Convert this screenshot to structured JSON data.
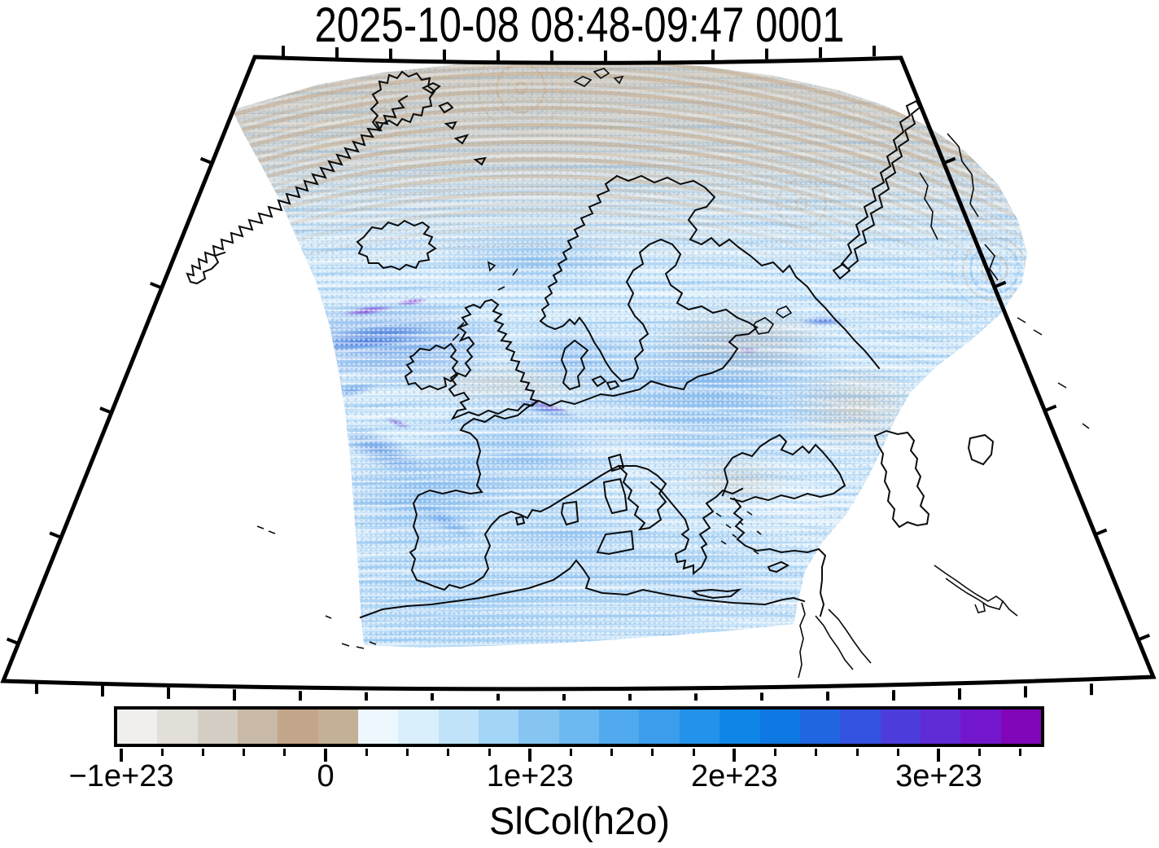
{
  "title": "2025-10-08 08:48-09:47 0001",
  "colorbar": {
    "label": "SlCol(h2o)",
    "range_min": -1.02e+23,
    "range_max": 3.5e+23,
    "minor_tick_step": 2e+22,
    "major_ticks": [
      {
        "value": -1e+23,
        "label": "−1e+23"
      },
      {
        "value": 0,
        "label": "0"
      },
      {
        "value": 1e+23,
        "label": "1e+23"
      },
      {
        "value": 2e+23,
        "label": "2e+23"
      },
      {
        "value": 3e+23,
        "label": "3e+23"
      }
    ],
    "colors": [
      "#f1efed",
      "#e2ded8",
      "#d5cec5",
      "#c9b9a7",
      "#c2a58a",
      "#c3b095",
      "#edf8fe",
      "#daeffc",
      "#c0e3fa",
      "#a3d5f6",
      "#86c5f2",
      "#6cb8f0",
      "#51aaee",
      "#3c9dec",
      "#2292ea",
      "#0e86e8",
      "#0d78e2",
      "#1f66e0",
      "#3452e0",
      "#4c3cdc",
      "#602ad4",
      "#7217cc",
      "#8106ba"
    ]
  },
  "chart_data": {
    "type": "heatmap",
    "title": "2025-10-08 08:48-09:47 0001",
    "variable": "SlCol(h2o)",
    "map_region": "Europe / North Atlantic, fan-shaped polar projection with coastlines",
    "colorbar_min": -1.02e+23,
    "colorbar_max": 3.5e+23,
    "colorbar_tick_values": [
      -1e+23,
      0,
      1e+23,
      2e+23,
      3e+23
    ],
    "colorbar_tick_labels": [
      "−1e+23",
      "0",
      "1e+23",
      "2e+23",
      "3e+23"
    ],
    "colorbar_minor_tick_step": 2e+22,
    "palette": "tan/gray for negative values, near-white at zero, light-to-deep blue for positive, violet at maximum",
    "visible_features": [
      "satellite swath of dotted scan rows covering Iceland to the Middle East",
      "tan (negative) arc rows across the Arctic top of the swath",
      "moderate blue values over Europe and the Mediterranean",
      "dark blue and violet streak maxima in the NE Atlantic and near the English Channel",
      "concentric dotted scan arcs at the swath edges"
    ]
  }
}
